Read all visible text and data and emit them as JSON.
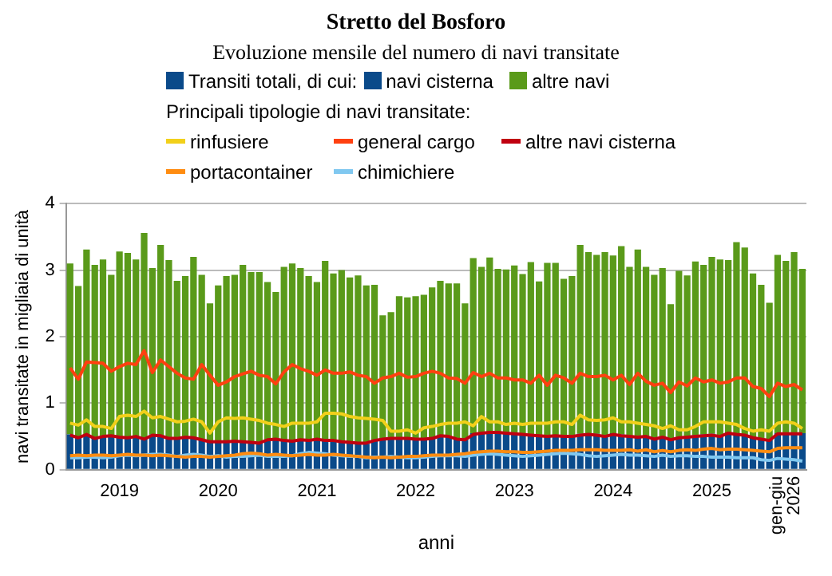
{
  "chart_data": {
    "type": "bar",
    "title": "Stretto del Bosforo",
    "subtitle": "Evoluzione mensile del numero di navi transitate",
    "legend_title": "Transiti totali, di cui:",
    "annotations": [
      "Principali tipologie di navi transitate:"
    ],
    "xlabel": "anni",
    "ylabel": "navi transitate in migliaia di unità",
    "stacked": true,
    "legend": "top",
    "grid": "y",
    "ylim": [
      0,
      4
    ],
    "yticks": [
      0,
      1,
      2,
      3,
      4
    ],
    "categories": [
      null,
      null,
      null,
      null,
      null,
      null,
      "2019",
      null,
      null,
      null,
      null,
      null,
      null,
      null,
      null,
      null,
      null,
      null,
      "2020",
      null,
      null,
      null,
      null,
      null,
      null,
      null,
      null,
      null,
      null,
      null,
      "2021",
      null,
      null,
      null,
      null,
      null,
      null,
      null,
      null,
      null,
      null,
      null,
      "2022",
      null,
      null,
      null,
      null,
      null,
      null,
      null,
      null,
      null,
      null,
      null,
      "2023",
      null,
      null,
      null,
      null,
      null,
      null,
      null,
      null,
      null,
      null,
      null,
      "2024",
      null,
      null,
      null,
      null,
      null,
      null,
      null,
      null,
      null,
      null,
      null,
      "2025",
      null,
      null,
      null,
      null,
      null,
      null,
      null,
      null,
      "gen-giu 2026",
      null,
      null
    ],
    "series": [
      {
        "name": "navi cisterna",
        "color": "#0a4a8a",
        "values": [
          0.53,
          0.5,
          0.52,
          0.48,
          0.5,
          0.52,
          0.5,
          0.47,
          0.5,
          0.47,
          0.53,
          0.52,
          0.47,
          0.48,
          0.49,
          0.48,
          0.45,
          0.41,
          0.43,
          0.42,
          0.43,
          0.42,
          0.41,
          0.41,
          0.45,
          0.47,
          0.44,
          0.44,
          0.45,
          0.44,
          0.46,
          0.45,
          0.44,
          0.42,
          0.4,
          0.4,
          0.39,
          0.44,
          0.46,
          0.47,
          0.48,
          0.47,
          0.46,
          0.46,
          0.47,
          0.52,
          0.5,
          0.47,
          0.45,
          0.55,
          0.56,
          0.57,
          0.57,
          0.56,
          0.55,
          0.54,
          0.53,
          0.52,
          0.51,
          0.52,
          0.51,
          0.52,
          0.54,
          0.55,
          0.54,
          0.52,
          0.55,
          0.53,
          0.51,
          0.5,
          0.51,
          0.47,
          0.5,
          0.45,
          0.48,
          0.5,
          0.52,
          0.53,
          0.54,
          0.52,
          0.56,
          0.55,
          0.53,
          0.49,
          0.47,
          0.44,
          0.55,
          0.55,
          0.55,
          0.55
        ]
      },
      {
        "name": "altre navi",
        "color": "#5a9a1a",
        "values": [
          2.57,
          2.26,
          2.79,
          2.6,
          2.66,
          2.41,
          2.78,
          2.79,
          2.66,
          3.09,
          2.5,
          2.86,
          2.68,
          2.36,
          2.42,
          2.72,
          2.48,
          2.09,
          2.34,
          2.49,
          2.5,
          2.66,
          2.56,
          2.56,
          2.37,
          2.2,
          2.61,
          2.66,
          2.58,
          2.47,
          2.36,
          2.69,
          2.51,
          2.58,
          2.49,
          2.52,
          2.38,
          2.34,
          1.86,
          1.9,
          2.13,
          2.12,
          2.15,
          2.17,
          2.27,
          2.32,
          2.3,
          2.33,
          2.05,
          2.63,
          2.49,
          2.62,
          2.45,
          2.45,
          2.52,
          2.4,
          2.59,
          2.31,
          2.6,
          2.59,
          2.36,
          2.39,
          2.84,
          2.72,
          2.69,
          2.75,
          2.67,
          2.83,
          2.54,
          2.81,
          2.54,
          2.46,
          2.53,
          2.04,
          2.51,
          2.42,
          2.61,
          2.55,
          2.66,
          2.64,
          2.59,
          2.87,
          2.81,
          2.46,
          2.31,
          2.07,
          2.68,
          2.59,
          2.72,
          2.47
        ]
      },
      {
        "name": "rinfusiere",
        "type": "line",
        "color": "#f2d01a",
        "values": [
          0.7,
          0.67,
          0.75,
          0.65,
          0.65,
          0.62,
          0.8,
          0.82,
          0.8,
          0.88,
          0.78,
          0.8,
          0.76,
          0.72,
          0.73,
          0.76,
          0.72,
          0.55,
          0.72,
          0.78,
          0.77,
          0.78,
          0.76,
          0.74,
          0.7,
          0.68,
          0.65,
          0.7,
          0.7,
          0.7,
          0.72,
          0.85,
          0.85,
          0.84,
          0.8,
          0.78,
          0.77,
          0.76,
          0.74,
          0.58,
          0.58,
          0.6,
          0.55,
          0.63,
          0.65,
          0.68,
          0.7,
          0.7,
          0.72,
          0.66,
          0.8,
          0.72,
          0.72,
          0.68,
          0.7,
          0.68,
          0.7,
          0.7,
          0.7,
          0.72,
          0.72,
          0.68,
          0.82,
          0.75,
          0.74,
          0.75,
          0.78,
          0.72,
          0.72,
          0.7,
          0.68,
          0.66,
          0.62,
          0.66,
          0.6,
          0.6,
          0.65,
          0.72,
          0.72,
          0.72,
          0.7,
          0.68,
          0.62,
          0.58,
          0.6,
          0.58,
          0.7,
          0.72,
          0.7,
          0.62
        ]
      },
      {
        "name": "general cargo",
        "type": "line",
        "color": "#ff4010",
        "values": [
          1.53,
          1.36,
          1.62,
          1.61,
          1.6,
          1.48,
          1.55,
          1.6,
          1.58,
          1.79,
          1.46,
          1.65,
          1.55,
          1.45,
          1.38,
          1.36,
          1.58,
          1.42,
          1.27,
          1.32,
          1.4,
          1.44,
          1.48,
          1.42,
          1.4,
          1.29,
          1.47,
          1.58,
          1.52,
          1.48,
          1.42,
          1.5,
          1.45,
          1.45,
          1.47,
          1.42,
          1.4,
          1.3,
          1.38,
          1.4,
          1.45,
          1.39,
          1.4,
          1.45,
          1.48,
          1.45,
          1.38,
          1.37,
          1.3,
          1.46,
          1.4,
          1.45,
          1.38,
          1.38,
          1.35,
          1.35,
          1.3,
          1.42,
          1.27,
          1.42,
          1.38,
          1.3,
          1.45,
          1.4,
          1.4,
          1.42,
          1.35,
          1.42,
          1.28,
          1.45,
          1.33,
          1.27,
          1.3,
          1.16,
          1.32,
          1.26,
          1.38,
          1.32,
          1.35,
          1.3,
          1.32,
          1.38,
          1.38,
          1.25,
          1.22,
          1.1,
          1.3,
          1.25,
          1.28,
          1.2
        ]
      },
      {
        "name": "altre navi cisterna",
        "type": "line",
        "color": "#c00010",
        "values": [
          0.52,
          0.48,
          0.53,
          0.47,
          0.5,
          0.51,
          0.49,
          0.48,
          0.5,
          0.46,
          0.52,
          0.51,
          0.47,
          0.47,
          0.49,
          0.48,
          0.45,
          0.42,
          0.42,
          0.42,
          0.43,
          0.42,
          0.41,
          0.4,
          0.45,
          0.46,
          0.44,
          0.43,
          0.45,
          0.44,
          0.46,
          0.44,
          0.44,
          0.42,
          0.41,
          0.4,
          0.4,
          0.44,
          0.46,
          0.47,
          0.47,
          0.47,
          0.46,
          0.46,
          0.47,
          0.51,
          0.5,
          0.46,
          0.45,
          0.53,
          0.55,
          0.56,
          0.56,
          0.55,
          0.54,
          0.53,
          0.52,
          0.51,
          0.5,
          0.51,
          0.5,
          0.5,
          0.52,
          0.53,
          0.52,
          0.5,
          0.53,
          0.51,
          0.5,
          0.49,
          0.5,
          0.46,
          0.49,
          0.45,
          0.48,
          0.49,
          0.5,
          0.51,
          0.52,
          0.5,
          0.55,
          0.53,
          0.52,
          0.48,
          0.46,
          0.44,
          0.54,
          0.54,
          0.54,
          0.54
        ]
      },
      {
        "name": "portacontainer",
        "type": "line",
        "color": "#ff8c10",
        "values": [
          0.21,
          0.22,
          0.21,
          0.22,
          0.22,
          0.21,
          0.22,
          0.23,
          0.22,
          0.22,
          0.21,
          0.22,
          0.21,
          0.2,
          0.19,
          0.2,
          0.2,
          0.19,
          0.2,
          0.21,
          0.22,
          0.24,
          0.25,
          0.24,
          0.22,
          0.23,
          0.22,
          0.21,
          0.22,
          0.23,
          0.22,
          0.22,
          0.23,
          0.22,
          0.21,
          0.2,
          0.19,
          0.18,
          0.19,
          0.18,
          0.19,
          0.2,
          0.2,
          0.21,
          0.22,
          0.22,
          0.22,
          0.23,
          0.24,
          0.26,
          0.27,
          0.28,
          0.28,
          0.27,
          0.27,
          0.26,
          0.26,
          0.27,
          0.28,
          0.29,
          0.29,
          0.29,
          0.3,
          0.3,
          0.3,
          0.29,
          0.29,
          0.29,
          0.3,
          0.28,
          0.3,
          0.27,
          0.29,
          0.27,
          0.29,
          0.3,
          0.29,
          0.31,
          0.32,
          0.3,
          0.31,
          0.31,
          0.3,
          0.29,
          0.28,
          0.27,
          0.32,
          0.33,
          0.33,
          0.33
        ]
      },
      {
        "name": "chimichiere",
        "type": "line",
        "color": "#80c8f0",
        "values": [
          0.18,
          0.18,
          0.19,
          0.19,
          0.18,
          0.19,
          0.21,
          0.22,
          0.21,
          0.22,
          0.23,
          0.23,
          0.22,
          0.2,
          0.22,
          0.23,
          0.22,
          0.2,
          0.21,
          0.19,
          0.2,
          0.2,
          0.21,
          0.22,
          0.2,
          0.2,
          0.2,
          0.21,
          0.24,
          0.26,
          0.25,
          0.24,
          0.22,
          0.21,
          0.2,
          0.2,
          0.18,
          0.19,
          0.19,
          0.2,
          0.19,
          0.18,
          0.18,
          0.19,
          0.2,
          0.21,
          0.21,
          0.21,
          0.2,
          0.22,
          0.23,
          0.24,
          0.23,
          0.22,
          0.21,
          0.2,
          0.21,
          0.22,
          0.23,
          0.24,
          0.25,
          0.24,
          0.23,
          0.21,
          0.2,
          0.21,
          0.22,
          0.23,
          0.22,
          0.22,
          0.21,
          0.2,
          0.22,
          0.2,
          0.21,
          0.21,
          0.2,
          0.2,
          0.19,
          0.19,
          0.19,
          0.18,
          0.18,
          0.18,
          0.15,
          0.14,
          0.17,
          0.16,
          0.15,
          0.13
        ]
      }
    ]
  }
}
